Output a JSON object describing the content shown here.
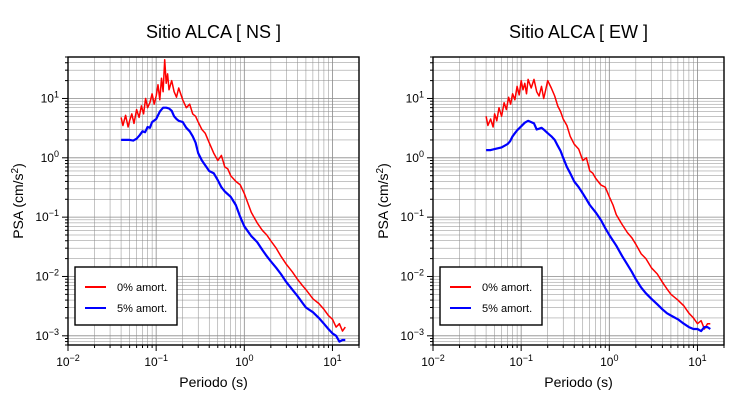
{
  "chart_data": [
    {
      "type": "line",
      "title": "Sitio ALCA [ NS ]",
      "xlabel": "Periodo (s)",
      "ylabel_base": "PSA (cm/s",
      "ylabel_sup": "2",
      "ylabel_end": ")",
      "xscale": "log",
      "yscale": "log",
      "xlim": [
        0.01,
        20
      ],
      "ylim": [
        0.0007,
        50
      ],
      "grid": true,
      "legend_position": "bottom-left",
      "x_ticks": [
        {
          "value": 0.01,
          "base": "10",
          "exp": "−2"
        },
        {
          "value": 0.1,
          "base": "10",
          "exp": "−1"
        },
        {
          "value": 1,
          "base": "10",
          "exp": "0"
        },
        {
          "value": 10,
          "base": "10",
          "exp": "1"
        }
      ],
      "y_ticks": [
        {
          "value": 0.001,
          "base": "10",
          "exp": "−3"
        },
        {
          "value": 0.01,
          "base": "10",
          "exp": "−2"
        },
        {
          "value": 0.1,
          "base": "10",
          "exp": "−1"
        },
        {
          "value": 1,
          "base": "10",
          "exp": "0"
        },
        {
          "value": 10,
          "base": "10",
          "exp": "1"
        }
      ],
      "series": [
        {
          "name": "0% amort.",
          "color": "#ff0000",
          "x": [
            0.04,
            0.042,
            0.045,
            0.048,
            0.05,
            0.053,
            0.056,
            0.06,
            0.064,
            0.068,
            0.072,
            0.076,
            0.08,
            0.085,
            0.09,
            0.095,
            0.1,
            0.105,
            0.11,
            0.115,
            0.12,
            0.125,
            0.13,
            0.135,
            0.14,
            0.15,
            0.16,
            0.17,
            0.18,
            0.2,
            0.22,
            0.24,
            0.26,
            0.28,
            0.3,
            0.33,
            0.36,
            0.4,
            0.45,
            0.5,
            0.55,
            0.6,
            0.65,
            0.7,
            0.8,
            0.9,
            1.0,
            1.1,
            1.2,
            1.4,
            1.6,
            1.8,
            2.0,
            2.3,
            2.6,
            3.0,
            3.5,
            4.0,
            4.5,
            5.0,
            6.0,
            7.0,
            8.0,
            9.0,
            10.0,
            11.0,
            12.0,
            13.0,
            14.0
          ],
          "y": [
            4.8,
            3.5,
            5.2,
            3.3,
            4.2,
            5.5,
            3.8,
            6.5,
            4.8,
            7.5,
            5.5,
            10.0,
            7.0,
            8.5,
            12.0,
            8.0,
            11.0,
            17.0,
            9.5,
            22.0,
            13.0,
            45.0,
            18.0,
            26.0,
            14.0,
            20.0,
            13.0,
            10.5,
            15.0,
            9.5,
            7.0,
            8.0,
            5.5,
            5.0,
            4.0,
            3.0,
            2.6,
            1.8,
            1.2,
            0.9,
            1.1,
            0.7,
            0.65,
            0.5,
            0.4,
            0.35,
            0.25,
            0.17,
            0.12,
            0.08,
            0.06,
            0.05,
            0.04,
            0.03,
            0.022,
            0.016,
            0.012,
            0.009,
            0.0072,
            0.006,
            0.0042,
            0.0035,
            0.0028,
            0.0022,
            0.0019,
            0.0014,
            0.0016,
            0.0012,
            0.0014
          ]
        },
        {
          "name": "5% amort.",
          "color": "#0000ff",
          "x": [
            0.04,
            0.045,
            0.05,
            0.055,
            0.06,
            0.065,
            0.07,
            0.075,
            0.08,
            0.085,
            0.09,
            0.1,
            0.11,
            0.12,
            0.13,
            0.14,
            0.15,
            0.16,
            0.17,
            0.18,
            0.2,
            0.22,
            0.24,
            0.26,
            0.28,
            0.3,
            0.33,
            0.36,
            0.4,
            0.45,
            0.5,
            0.55,
            0.6,
            0.7,
            0.8,
            0.9,
            1.0,
            1.2,
            1.4,
            1.6,
            1.8,
            2.0,
            2.3,
            2.6,
            3.0,
            3.5,
            4.0,
            4.5,
            5.0,
            6.0,
            7.0,
            8.0,
            9.0,
            10.0,
            11.0,
            12.0,
            13.0,
            14.0
          ],
          "y": [
            2.0,
            2.0,
            2.0,
            1.95,
            2.1,
            2.4,
            2.8,
            2.7,
            3.3,
            3.2,
            4.0,
            4.5,
            6.0,
            7.0,
            7.0,
            6.8,
            6.2,
            5.0,
            4.5,
            4.2,
            4.0,
            3.2,
            2.8,
            2.3,
            1.8,
            1.2,
            0.9,
            0.75,
            0.6,
            0.55,
            0.42,
            0.32,
            0.27,
            0.22,
            0.16,
            0.1,
            0.07,
            0.048,
            0.038,
            0.028,
            0.022,
            0.018,
            0.014,
            0.011,
            0.008,
            0.006,
            0.0047,
            0.0037,
            0.003,
            0.0025,
            0.002,
            0.0016,
            0.0013,
            0.0011,
            0.001,
            0.0008,
            0.00085,
            0.00085
          ]
        }
      ]
    },
    {
      "type": "line",
      "title": "Sitio ALCA [ EW ]",
      "xlabel": "Periodo (s)",
      "ylabel_base": "PSA (cm/s",
      "ylabel_sup": "2",
      "ylabel_end": ")",
      "xscale": "log",
      "yscale": "log",
      "xlim": [
        0.01,
        20
      ],
      "ylim": [
        0.0007,
        50
      ],
      "grid": true,
      "legend_position": "bottom-left",
      "x_ticks": [
        {
          "value": 0.01,
          "base": "10",
          "exp": "−2"
        },
        {
          "value": 0.1,
          "base": "10",
          "exp": "−1"
        },
        {
          "value": 1,
          "base": "10",
          "exp": "0"
        },
        {
          "value": 10,
          "base": "10",
          "exp": "1"
        }
      ],
      "y_ticks": [
        {
          "value": 0.001,
          "base": "10",
          "exp": "−3"
        },
        {
          "value": 0.01,
          "base": "10",
          "exp": "−2"
        },
        {
          "value": 0.1,
          "base": "10",
          "exp": "−1"
        },
        {
          "value": 1,
          "base": "10",
          "exp": "0"
        },
        {
          "value": 10,
          "base": "10",
          "exp": "1"
        }
      ],
      "series": [
        {
          "name": "0% amort.",
          "color": "#ff0000",
          "x": [
            0.04,
            0.042,
            0.045,
            0.048,
            0.05,
            0.053,
            0.056,
            0.06,
            0.064,
            0.068,
            0.072,
            0.076,
            0.08,
            0.085,
            0.09,
            0.095,
            0.1,
            0.105,
            0.11,
            0.115,
            0.12,
            0.13,
            0.14,
            0.15,
            0.16,
            0.17,
            0.18,
            0.19,
            0.2,
            0.22,
            0.24,
            0.26,
            0.28,
            0.3,
            0.33,
            0.36,
            0.4,
            0.45,
            0.5,
            0.55,
            0.6,
            0.65,
            0.7,
            0.8,
            0.9,
            1.0,
            1.1,
            1.2,
            1.4,
            1.6,
            1.8,
            2.0,
            2.3,
            2.6,
            3.0,
            3.5,
            4.0,
            4.5,
            5.0,
            6.0,
            7.0,
            8.0,
            9.0,
            10.0,
            11.0,
            12.0,
            13.0,
            14.0
          ],
          "y": [
            5.0,
            3.5,
            4.5,
            3.3,
            5.5,
            4.2,
            7.0,
            5.0,
            8.5,
            6.5,
            10.5,
            8.0,
            12.0,
            9.5,
            16.0,
            11.5,
            20.0,
            14.0,
            18.0,
            12.0,
            21.0,
            15.0,
            21.0,
            13.0,
            11.0,
            16.0,
            10.0,
            14.0,
            20.0,
            15.0,
            11.0,
            7.5,
            6.0,
            4.5,
            3.5,
            2.3,
            1.7,
            1.4,
            0.9,
            1.0,
            0.6,
            0.55,
            0.45,
            0.35,
            0.32,
            0.22,
            0.16,
            0.11,
            0.075,
            0.055,
            0.045,
            0.035,
            0.024,
            0.02,
            0.014,
            0.011,
            0.008,
            0.0062,
            0.005,
            0.004,
            0.0032,
            0.0024,
            0.002,
            0.0016,
            0.0018,
            0.0013,
            0.0016,
            0.0016
          ]
        },
        {
          "name": "5% amort.",
          "color": "#0000ff",
          "x": [
            0.04,
            0.045,
            0.05,
            0.055,
            0.06,
            0.065,
            0.07,
            0.075,
            0.08,
            0.085,
            0.09,
            0.1,
            0.11,
            0.12,
            0.13,
            0.14,
            0.15,
            0.16,
            0.17,
            0.18,
            0.2,
            0.22,
            0.24,
            0.26,
            0.28,
            0.3,
            0.33,
            0.36,
            0.4,
            0.45,
            0.5,
            0.55,
            0.6,
            0.7,
            0.8,
            0.9,
            1.0,
            1.2,
            1.4,
            1.6,
            1.8,
            2.0,
            2.3,
            2.6,
            3.0,
            3.5,
            4.0,
            4.5,
            5.0,
            6.0,
            7.0,
            8.0,
            9.0,
            10.0,
            11.0,
            12.0,
            13.0,
            14.0
          ],
          "y": [
            1.35,
            1.35,
            1.4,
            1.45,
            1.5,
            1.6,
            1.7,
            1.9,
            2.3,
            2.6,
            2.9,
            3.4,
            3.9,
            4.2,
            4.0,
            3.8,
            3.0,
            3.1,
            3.2,
            3.0,
            2.6,
            2.3,
            2.0,
            1.6,
            1.3,
            1.0,
            0.7,
            0.55,
            0.4,
            0.32,
            0.25,
            0.2,
            0.16,
            0.12,
            0.09,
            0.065,
            0.05,
            0.033,
            0.022,
            0.016,
            0.012,
            0.009,
            0.0065,
            0.0052,
            0.0042,
            0.0034,
            0.0028,
            0.0024,
            0.0022,
            0.0019,
            0.0016,
            0.0014,
            0.0013,
            0.0013,
            0.0012,
            0.0014,
            0.0014,
            0.0013
          ]
        }
      ]
    }
  ]
}
